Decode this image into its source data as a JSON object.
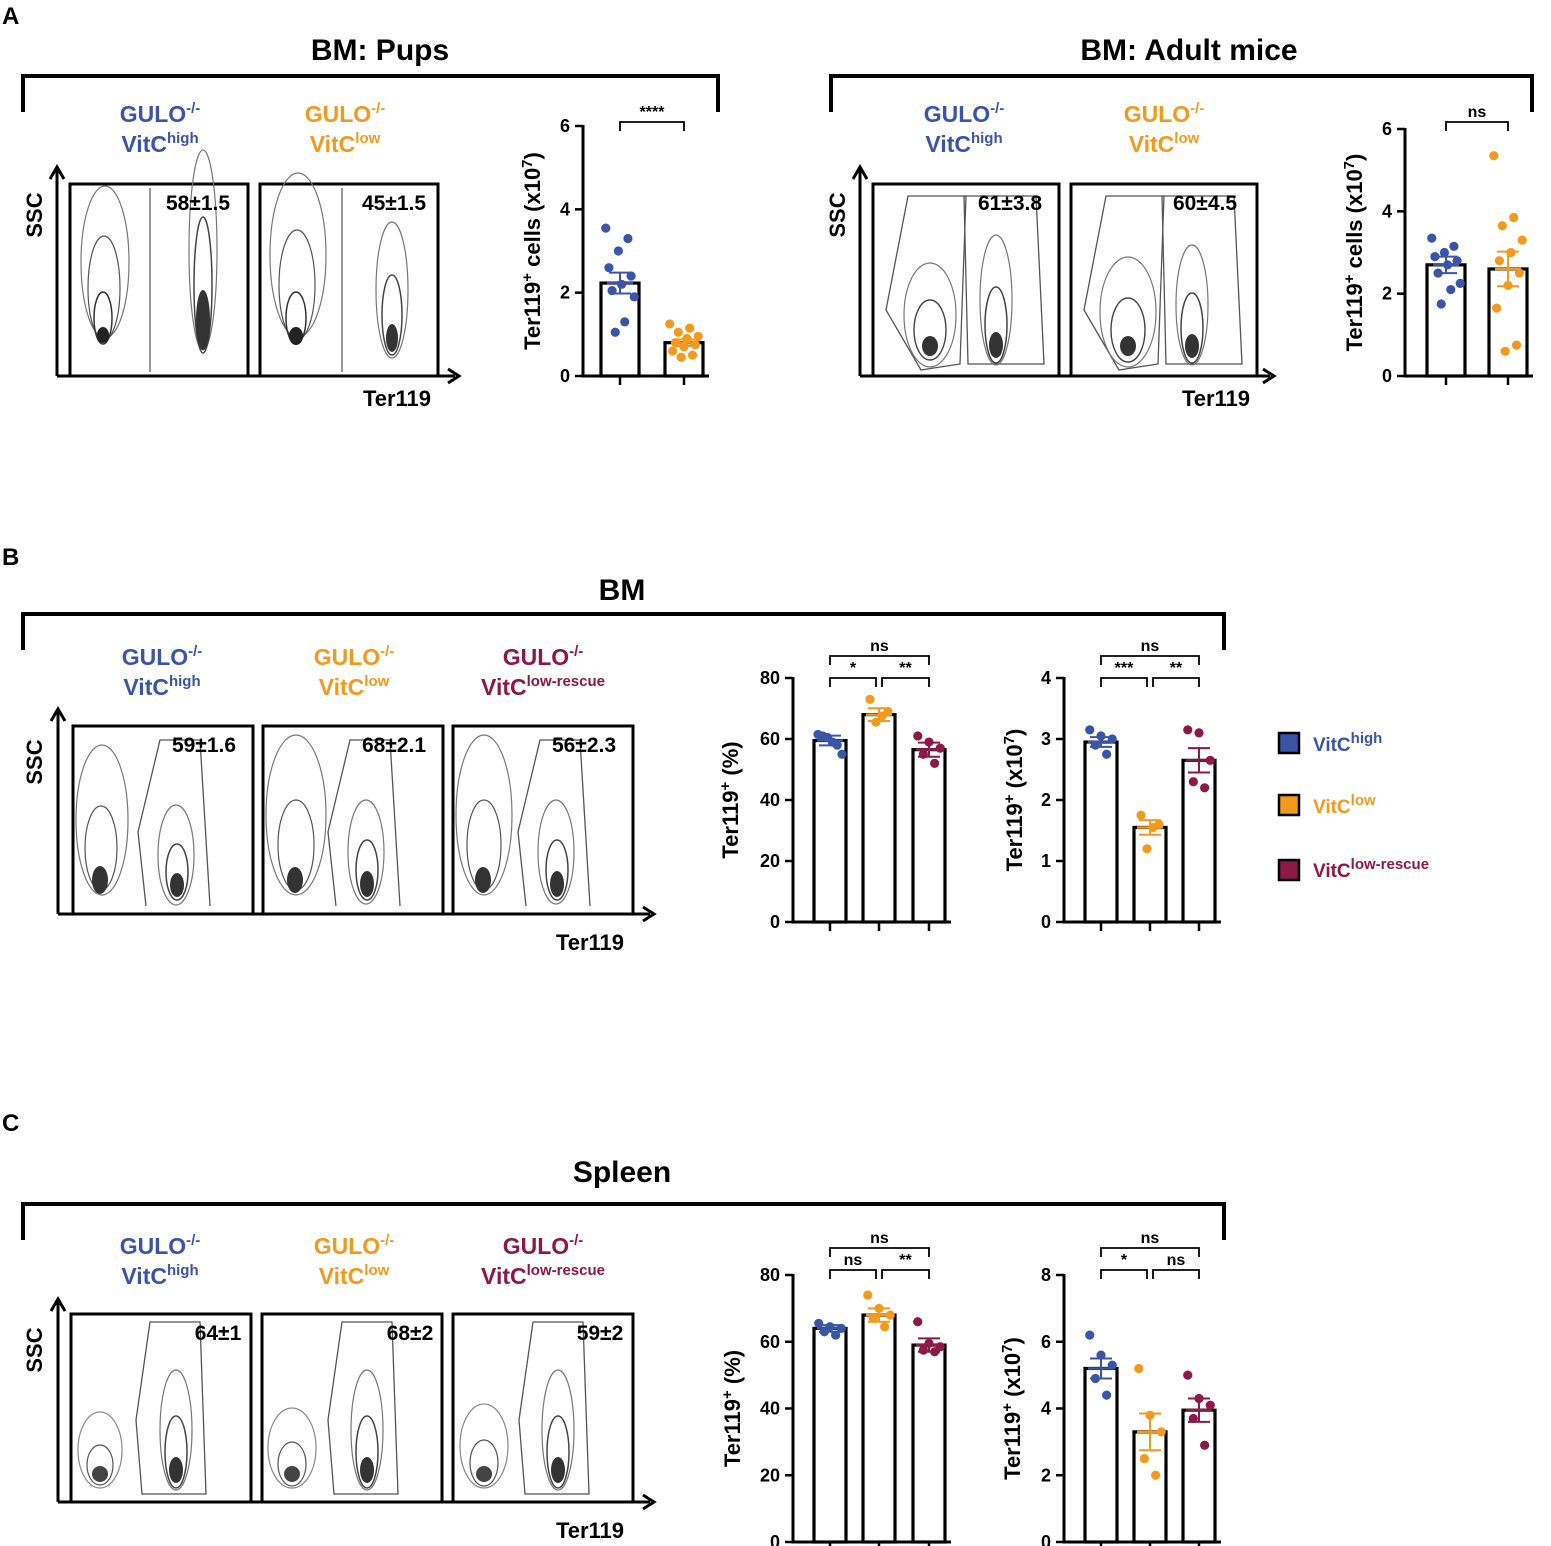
{
  "colors": {
    "high": "#3a55a8",
    "low": "#f39a1e",
    "rescue": "#8c1948"
  },
  "legend": [
    {
      "key": "high",
      "base": "VitC",
      "sup": "high"
    },
    {
      "key": "low",
      "base": "VitC",
      "sup": "low"
    },
    {
      "key": "rescue",
      "base": "VitC",
      "sup": "low-rescue"
    }
  ],
  "panels": {
    "A": {
      "letter": "A",
      "subpanels": [
        {
          "title": "BM: Pups",
          "groups": [
            {
              "key": "high",
              "line1_base": "GULO",
              "line1_sup": "-/-",
              "line2_base": "VitC",
              "line2_sup": "high"
            },
            {
              "key": "low",
              "line1_base": "GULO",
              "line1_sup": "-/-",
              "line2_base": "VitC",
              "line2_sup": "low"
            }
          ],
          "flow": {
            "y_label": "SSC",
            "x_label": "Ter119",
            "percentages": [
              "58±1.5",
              "45±1.5"
            ]
          }
        },
        {
          "title": "BM: Adult mice",
          "groups": [
            {
              "key": "high",
              "line1_base": "GULO",
              "line1_sup": "-/-",
              "line2_base": "VitC",
              "line2_sup": "high"
            },
            {
              "key": "low",
              "line1_base": "GULO",
              "line1_sup": "-/-",
              "line2_base": "VitC",
              "line2_sup": "low"
            }
          ],
          "flow": {
            "y_label": "SSC",
            "x_label": "Ter119",
            "percentages": [
              "61±3.8",
              "60±4.5"
            ]
          }
        }
      ]
    },
    "B": {
      "letter": "B",
      "title": "BM",
      "groups": [
        {
          "key": "high",
          "line1_base": "GULO",
          "line1_sup": "-/-",
          "line2_base": "VitC",
          "line2_sup": "high"
        },
        {
          "key": "low",
          "line1_base": "GULO",
          "line1_sup": "-/-",
          "line2_base": "VitC",
          "line2_sup": "low"
        },
        {
          "key": "rescue",
          "line1_base": "GULO",
          "line1_sup": "-/-",
          "line2_base": "VitC",
          "line2_sup": "low-rescue"
        }
      ],
      "flow": {
        "y_label": "SSC",
        "x_label": "Ter119",
        "percentages": [
          "59±1.6",
          "68±2.1",
          "56±2.3"
        ]
      }
    },
    "C": {
      "letter": "C",
      "title": "Spleen",
      "groups": [
        {
          "key": "high",
          "line1_base": "GULO",
          "line1_sup": "-/-",
          "line2_base": "VitC",
          "line2_sup": "high"
        },
        {
          "key": "low",
          "line1_base": "GULO",
          "line1_sup": "-/-",
          "line2_base": "VitC",
          "line2_sup": "low"
        },
        {
          "key": "rescue",
          "line1_base": "GULO",
          "line1_sup": "-/-",
          "line2_base": "VitC",
          "line2_sup": "low-rescue"
        }
      ],
      "flow": {
        "y_label": "SSC",
        "x_label": "Ter119",
        "percentages": [
          "64±1",
          "68±2",
          "59±2"
        ]
      }
    }
  },
  "chart_data": [
    {
      "id": "A-pups",
      "type": "bar",
      "ylabel_base": "Ter119",
      "ylabel_sup1": "+",
      "ylabel_mid": " cells (x10",
      "ylabel_sup2": "7",
      "ylabel_end": ")",
      "ylim": [
        0,
        6
      ],
      "yticks": [
        "0",
        "2",
        "4",
        "6"
      ],
      "series": [
        {
          "key": "high",
          "mean": 2.23,
          "sem": 0.25,
          "points": [
            3.55,
            3.3,
            3.0,
            2.6,
            2.4,
            2.2,
            2.05,
            1.9,
            1.3,
            1.05
          ]
        },
        {
          "key": "low",
          "mean": 0.8,
          "sem": 0.08,
          "points": [
            1.25,
            1.15,
            1.05,
            0.95,
            0.9,
            0.8,
            0.75,
            0.7,
            0.6,
            0.5,
            0.45
          ]
        }
      ],
      "comparisons": [
        {
          "from": 0,
          "to": 1,
          "label": "****"
        }
      ]
    },
    {
      "id": "A-adult",
      "type": "bar",
      "ylabel_base": "Ter119",
      "ylabel_sup1": "+",
      "ylabel_mid": " cells (x10",
      "ylabel_sup2": "7",
      "ylabel_end": ")",
      "ylim": [
        0,
        6
      ],
      "yticks": [
        "0",
        "2",
        "4",
        "6"
      ],
      "series": [
        {
          "key": "high",
          "mean": 2.7,
          "sem": 0.2,
          "points": [
            3.35,
            3.15,
            3.0,
            2.9,
            2.8,
            2.7,
            2.5,
            2.25,
            2.1,
            1.75
          ]
        },
        {
          "key": "low",
          "mean": 2.6,
          "sem": 0.42,
          "points": [
            5.35,
            3.85,
            3.65,
            3.3,
            3.0,
            2.8,
            2.5,
            2.2,
            1.65,
            0.75,
            0.6
          ]
        }
      ],
      "comparisons": [
        {
          "from": 0,
          "to": 1,
          "label": "ns"
        }
      ]
    },
    {
      "id": "B-percent",
      "type": "bar",
      "ylabel_base": "Ter119",
      "ylabel_sup1": "+",
      "ylabel_mid": " (%)",
      "ylabel_sup2": "",
      "ylabel_end": "",
      "ylim": [
        0,
        80
      ],
      "yticks": [
        "0",
        "20",
        "40",
        "60",
        "80"
      ],
      "series": [
        {
          "key": "high",
          "mean": 59.5,
          "sem": 1.6,
          "points": [
            61.5,
            61,
            60.5,
            59,
            58,
            55
          ]
        },
        {
          "key": "low",
          "mean": 68,
          "sem": 2.1,
          "points": [
            73,
            69,
            67.5,
            65.5
          ]
        },
        {
          "key": "rescue",
          "mean": 56.5,
          "sem": 2.3,
          "points": [
            61,
            59,
            57,
            55,
            52
          ]
        }
      ],
      "comparisons": [
        {
          "from": 0,
          "to": 1,
          "label": "*"
        },
        {
          "from": 1,
          "to": 2,
          "label": "**"
        },
        {
          "from": 0,
          "to": 2,
          "label": "ns"
        }
      ]
    },
    {
      "id": "B-count",
      "type": "bar",
      "ylabel_base": "Ter119",
      "ylabel_sup1": "+",
      "ylabel_mid": " (x10",
      "ylabel_sup2": "7",
      "ylabel_end": ")",
      "ylim": [
        0,
        4
      ],
      "yticks": [
        "0",
        "1",
        "2",
        "3",
        "4"
      ],
      "series": [
        {
          "key": "high",
          "mean": 2.95,
          "sem": 0.08,
          "points": [
            3.15,
            3.05,
            3.0,
            2.9,
            2.75
          ]
        },
        {
          "key": "low",
          "mean": 1.55,
          "sem": 0.12,
          "points": [
            1.75,
            1.6,
            1.55,
            1.2
          ]
        },
        {
          "key": "rescue",
          "mean": 2.65,
          "sem": 0.2,
          "points": [
            3.15,
            3.1,
            2.65,
            2.3,
            2.2
          ]
        }
      ],
      "comparisons": [
        {
          "from": 0,
          "to": 1,
          "label": "***"
        },
        {
          "from": 1,
          "to": 2,
          "label": "**"
        },
        {
          "from": 0,
          "to": 2,
          "label": "ns"
        }
      ]
    },
    {
      "id": "C-percent",
      "type": "bar",
      "ylabel_base": "Ter119",
      "ylabel_sup1": "+",
      "ylabel_mid": " (%)",
      "ylabel_sup2": "",
      "ylabel_end": "",
      "ylim": [
        0,
        80
      ],
      "yticks": [
        "0",
        "20",
        "40",
        "60",
        "80"
      ],
      "series": [
        {
          "key": "high",
          "mean": 64,
          "sem": 1,
          "points": [
            65.5,
            64.5,
            64,
            63,
            62
          ]
        },
        {
          "key": "low",
          "mean": 68,
          "sem": 2,
          "points": [
            74,
            70,
            68,
            67,
            64.5
          ]
        },
        {
          "key": "rescue",
          "mean": 59,
          "sem": 2,
          "points": [
            66,
            59.5,
            58.5,
            57.5,
            57
          ]
        }
      ],
      "comparisons": [
        {
          "from": 0,
          "to": 1,
          "label": "ns"
        },
        {
          "from": 1,
          "to": 2,
          "label": "**"
        },
        {
          "from": 0,
          "to": 2,
          "label": "ns"
        }
      ]
    },
    {
      "id": "C-count",
      "type": "bar",
      "ylabel_base": "Ter119",
      "ylabel_sup1": "+",
      "ylabel_mid": " (x10",
      "ylabel_sup2": "7",
      "ylabel_end": ")",
      "ylim": [
        0,
        8
      ],
      "yticks": [
        "0",
        "2",
        "4",
        "6",
        "8"
      ],
      "series": [
        {
          "key": "high",
          "mean": 5.2,
          "sem": 0.3,
          "points": [
            6.2,
            5.6,
            5.3,
            4.9,
            4.4
          ]
        },
        {
          "key": "low",
          "mean": 3.3,
          "sem": 0.55,
          "points": [
            5.2,
            3.8,
            3.3,
            2.5,
            2.0
          ]
        },
        {
          "key": "rescue",
          "mean": 3.95,
          "sem": 0.35,
          "points": [
            5.0,
            4.3,
            4.1,
            3.7,
            2.9
          ]
        }
      ],
      "comparisons": [
        {
          "from": 0,
          "to": 1,
          "label": "*"
        },
        {
          "from": 1,
          "to": 2,
          "label": "ns"
        },
        {
          "from": 0,
          "to": 2,
          "label": "ns"
        }
      ]
    }
  ]
}
